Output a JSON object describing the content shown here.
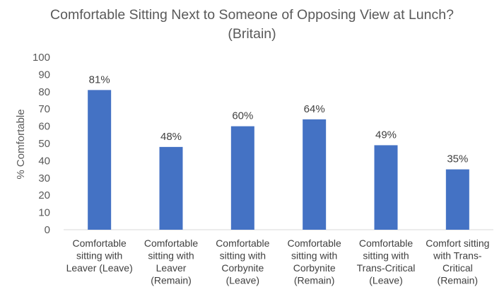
{
  "chart_data": {
    "type": "bar",
    "title": "Comfortable Sitting Next to Someone of Opposing View at Lunch?",
    "subtitle": "(Britain)",
    "xlabel": "",
    "ylabel": "% Comfortable",
    "ylim": [
      0,
      100
    ],
    "yticks": [
      0,
      10,
      20,
      30,
      40,
      50,
      60,
      70,
      80,
      90,
      100
    ],
    "grid": false,
    "bar_color": "#4472c4",
    "categories": [
      [
        "Comfortable",
        "sitting with",
        "Leaver (Leave)"
      ],
      [
        "Comfortable",
        "sitting with",
        "Leaver",
        "(Remain)"
      ],
      [
        "Comfortable",
        "sitting with",
        "Corbynite",
        "(Leave)"
      ],
      [
        "Comfortable",
        "sitting with",
        "Corbynite",
        "(Remain)"
      ],
      [
        "Comfortable",
        "sitting with",
        "Trans-Critical",
        "(Leave)"
      ],
      [
        "Comfort sitting",
        "with Trans-",
        "Critical",
        "(Remain)"
      ]
    ],
    "values": [
      81,
      48,
      60,
      64,
      49,
      35
    ],
    "data_labels": [
      "81%",
      "48%",
      "60%",
      "64%",
      "49%",
      "35%"
    ]
  }
}
